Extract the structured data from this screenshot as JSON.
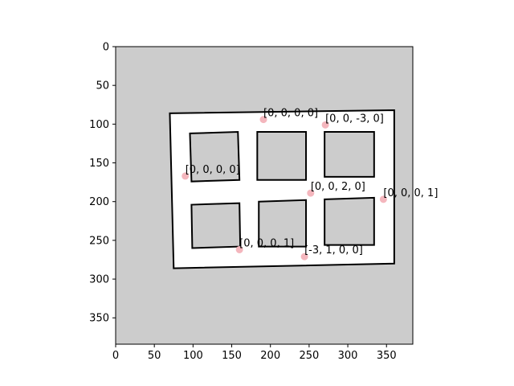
{
  "chart_data": {
    "type": "scatter",
    "title": "",
    "xlabel": "",
    "ylabel": "",
    "xlim": [
      0,
      384
    ],
    "ylim": [
      384,
      0
    ],
    "y_axis_inverted": true,
    "grid": false,
    "x_ticks": [
      0,
      50,
      100,
      150,
      200,
      250,
      300,
      350
    ],
    "y_ticks": [
      0,
      50,
      100,
      150,
      200,
      250,
      300,
      350
    ],
    "background": {
      "description_type": "occupancy-map image",
      "unknown_color": "#cccccc",
      "free_color": "#ffffff",
      "wall_color": "#000000",
      "outer_boundary": [
        [
          70,
          86
        ],
        [
          360,
          82
        ],
        [
          360,
          280
        ],
        [
          75,
          286
        ]
      ],
      "rooms": [
        [
          [
            96,
            112
          ],
          [
            158,
            110
          ],
          [
            160,
            172
          ],
          [
            98,
            174
          ]
        ],
        [
          [
            183,
            110
          ],
          [
            246,
            110
          ],
          [
            246,
            172
          ],
          [
            183,
            172
          ]
        ],
        [
          [
            270,
            110
          ],
          [
            334,
            110
          ],
          [
            334,
            168
          ],
          [
            270,
            168
          ]
        ],
        [
          [
            98,
            204
          ],
          [
            160,
            202
          ],
          [
            161,
            258
          ],
          [
            99,
            260
          ]
        ],
        [
          [
            185,
            200
          ],
          [
            246,
            198
          ],
          [
            246,
            258
          ],
          [
            185,
            258
          ]
        ],
        [
          [
            270,
            197
          ],
          [
            334,
            195
          ],
          [
            334,
            256
          ],
          [
            270,
            256
          ]
        ]
      ]
    },
    "point_color": "#f4b6bd",
    "points": [
      {
        "x": 191,
        "y": 94,
        "label": "[0, 0, 0, 0]"
      },
      {
        "x": 271,
        "y": 101,
        "label": "[0, 0, -3, 0]"
      },
      {
        "x": 90,
        "y": 167,
        "label": "[0, 0, 0, 0]"
      },
      {
        "x": 252,
        "y": 189,
        "label": "[0, 0, 2, 0]"
      },
      {
        "x": 346,
        "y": 197,
        "label": "[0, 0, 0, 1]"
      },
      {
        "x": 160,
        "y": 262,
        "label": "[0, 0, 0, 1]"
      },
      {
        "x": 244,
        "y": 271,
        "label": "[-3, 1, 0, 0]"
      }
    ]
  }
}
